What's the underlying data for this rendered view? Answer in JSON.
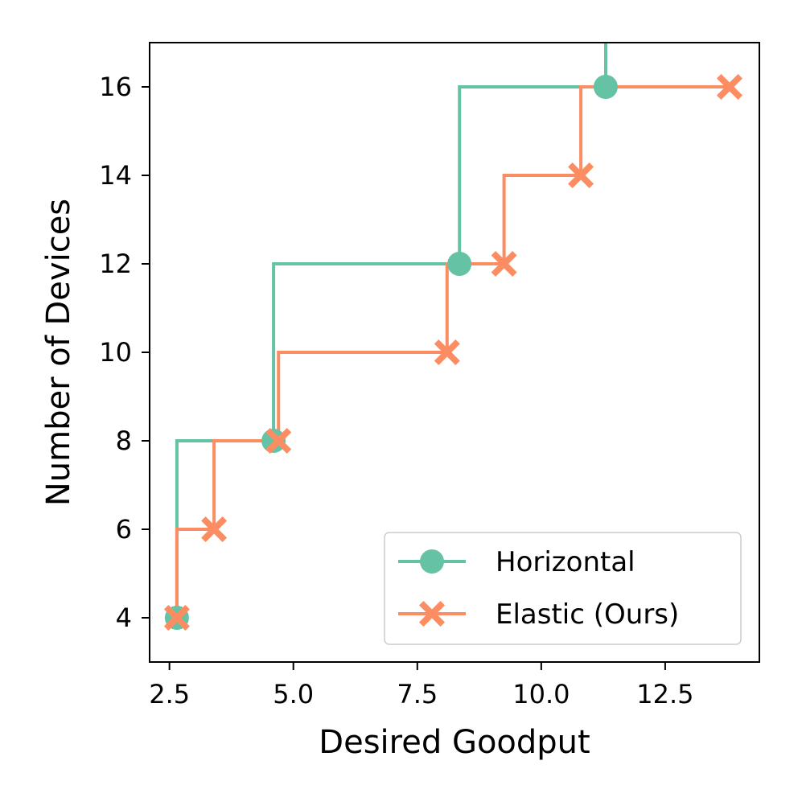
{
  "chart_data": {
    "type": "line",
    "step": "post",
    "xlabel": "Desired Goodput",
    "ylabel": "Number of Devices",
    "xlim": [
      2.1,
      14.4
    ],
    "ylim": [
      3.0,
      17.0
    ],
    "xticks": [
      2.5,
      5.0,
      7.5,
      10.0,
      12.5
    ],
    "xtick_labels": [
      "2.5",
      "5.0",
      "7.5",
      "10.0",
      "12.5"
    ],
    "yticks": [
      4,
      6,
      8,
      10,
      12,
      14,
      16
    ],
    "ytick_labels": [
      "4",
      "6",
      "8",
      "10",
      "12",
      "14",
      "16"
    ],
    "grid": false,
    "legend_position": "lower-right",
    "series": [
      {
        "name": "Horizontal",
        "color": "#66c2a5",
        "marker": "circle",
        "points": [
          [
            2.65,
            4
          ],
          [
            4.6,
            8
          ],
          [
            8.35,
            12
          ],
          [
            11.3,
            16
          ]
        ],
        "step_vertices": [
          [
            2.65,
            4
          ],
          [
            2.65,
            8
          ],
          [
            4.6,
            8
          ],
          [
            4.6,
            12
          ],
          [
            8.35,
            12
          ],
          [
            8.35,
            16
          ],
          [
            11.3,
            16
          ],
          [
            11.3,
            17.0
          ]
        ]
      },
      {
        "name": "Elastic (Ours)",
        "color": "#fc8d62",
        "marker": "x",
        "points": [
          [
            2.65,
            4
          ],
          [
            3.4,
            6
          ],
          [
            4.7,
            8
          ],
          [
            8.1,
            10
          ],
          [
            9.25,
            12
          ],
          [
            10.8,
            14
          ],
          [
            13.8,
            16
          ]
        ],
        "step_vertices": [
          [
            2.65,
            4
          ],
          [
            2.65,
            6
          ],
          [
            3.4,
            6
          ],
          [
            3.4,
            8
          ],
          [
            4.7,
            8
          ],
          [
            4.7,
            10
          ],
          [
            8.1,
            10
          ],
          [
            8.1,
            12
          ],
          [
            9.25,
            12
          ],
          [
            9.25,
            14
          ],
          [
            10.8,
            14
          ],
          [
            10.8,
            16
          ],
          [
            13.8,
            16
          ]
        ]
      }
    ]
  }
}
